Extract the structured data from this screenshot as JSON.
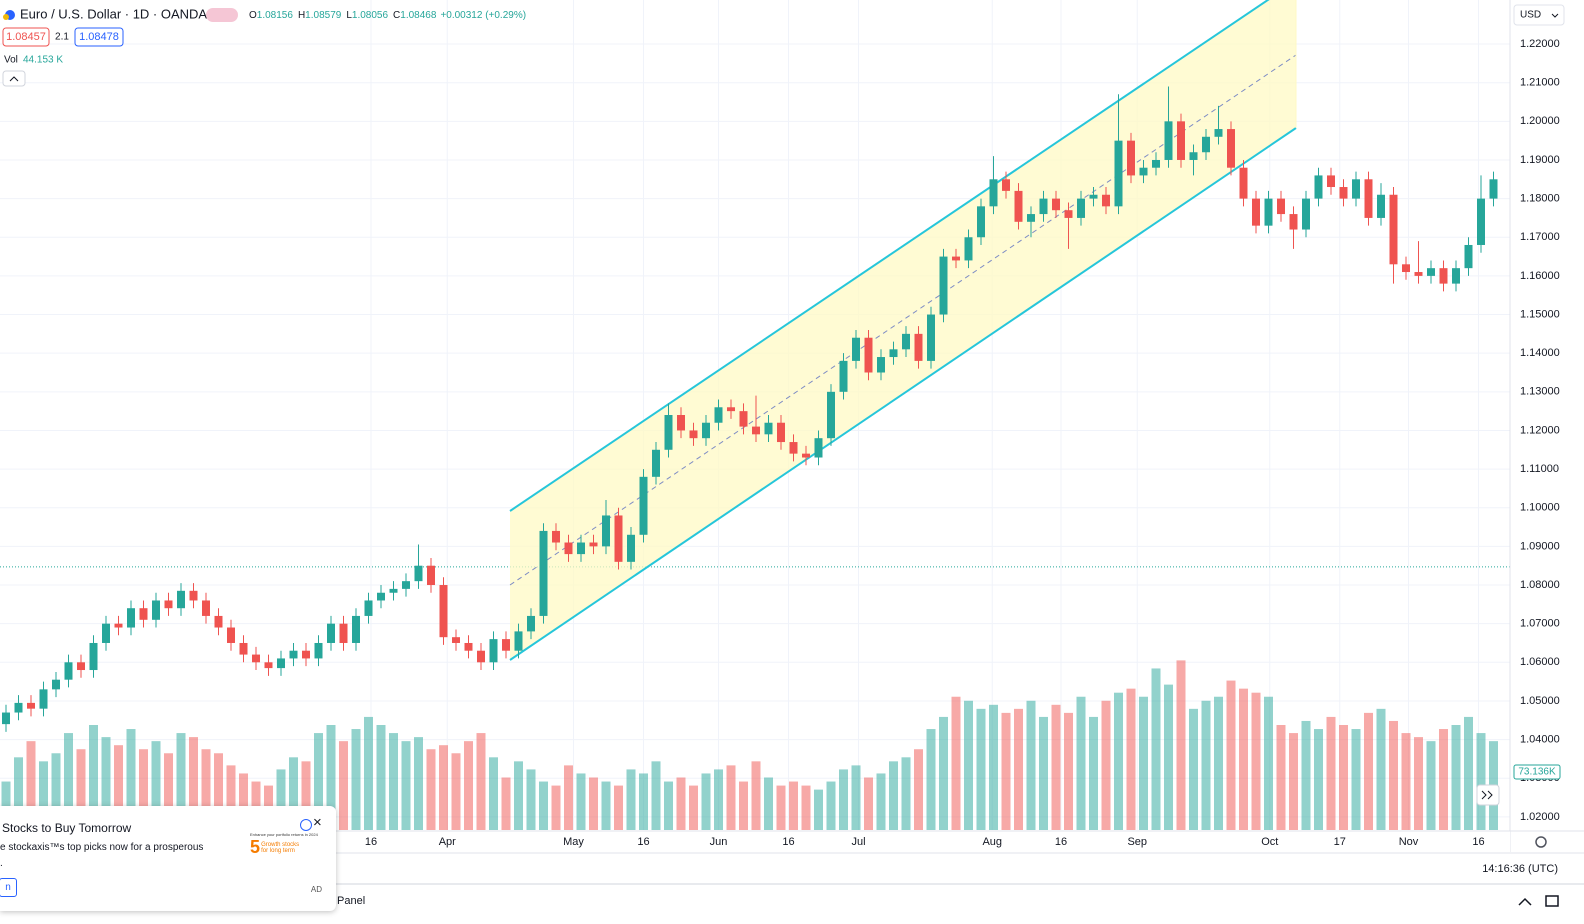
{
  "chart_data": {
    "type": "candlestick",
    "ylim": [
      1.0166,
      1.2314
    ],
    "yticks": [
      {
        "value": 1.22,
        "label": "1.22000"
      },
      {
        "value": 1.21,
        "label": "1.21000"
      },
      {
        "value": 1.2,
        "label": "1.20000"
      },
      {
        "value": 1.19,
        "label": "1.19000"
      },
      {
        "value": 1.18,
        "label": "1.18000"
      },
      {
        "value": 1.17,
        "label": "1.17000"
      },
      {
        "value": 1.16,
        "label": "1.16000"
      },
      {
        "value": 1.15,
        "label": "1.15000"
      },
      {
        "value": 1.14,
        "label": "1.14000"
      },
      {
        "value": 1.13,
        "label": "1.13000"
      },
      {
        "value": 1.12,
        "label": "1.12000"
      },
      {
        "value": 1.11,
        "label": "1.11000"
      },
      {
        "value": 1.1,
        "label": "1.10000"
      },
      {
        "value": 1.09,
        "label": "1.09000"
      },
      {
        "value": 1.08,
        "label": "1.08000"
      },
      {
        "value": 1.07,
        "label": "1.07000"
      },
      {
        "value": 1.06,
        "label": "1.06000"
      },
      {
        "value": 1.05,
        "label": "1.05000"
      },
      {
        "value": 1.04,
        "label": "1.04000"
      },
      {
        "value": 1.03,
        "label": "1.03000"
      },
      {
        "value": 1.02,
        "label": "1.02000"
      }
    ],
    "xticks": [
      {
        "value": 29.2,
        "label": "16"
      },
      {
        "value": 35.3,
        "label": "Apr"
      },
      {
        "value": 45.4,
        "label": "May"
      },
      {
        "value": 51,
        "label": "16"
      },
      {
        "value": 57,
        "label": "Jun"
      },
      {
        "value": 62.6,
        "label": "16"
      },
      {
        "value": 68.2,
        "label": "Jul"
      },
      {
        "value": 78.9,
        "label": "Aug"
      },
      {
        "value": 84.4,
        "label": "16"
      },
      {
        "value": 90.5,
        "label": "Sep"
      },
      {
        "value": 101.1,
        "label": "Oct"
      },
      {
        "value": 106.7,
        "label": "17"
      },
      {
        "value": 112.2,
        "label": "Nov"
      },
      {
        "value": 117.8,
        "label": "16"
      }
    ],
    "up_color": "#26a69a",
    "down_color": "#ef5350",
    "grid": true,
    "volume_lim": [
      0,
      260
    ],
    "open": [
      1.044,
      1.047,
      1.0495,
      1.048,
      1.053,
      1.0555,
      1.06,
      1.058,
      1.065,
      1.07,
      1.069,
      1.074,
      1.071,
      1.076,
      1.074,
      1.0785,
      1.076,
      1.072,
      1.069,
      1.065,
      1.062,
      1.06,
      1.0585,
      1.061,
      1.063,
      1.061,
      1.065,
      1.07,
      1.065,
      1.072,
      1.076,
      1.078,
      1.079,
      1.081,
      1.085,
      1.08,
      1.0665,
      1.065,
      1.063,
      1.06,
      1.066,
      1.063,
      1.068,
      1.072,
      1.094,
      1.091,
      1.088,
      1.091,
      1.09,
      1.098,
      1.086,
      1.093,
      1.108,
      1.115,
      1.124,
      1.12,
      1.118,
      1.122,
      1.126,
      1.125,
      1.121,
      1.119,
      1.122,
      1.117,
      1.114,
      1.113,
      1.118,
      1.13,
      1.138,
      1.144,
      1.135,
      1.139,
      1.141,
      1.145,
      1.138,
      1.15,
      1.165,
      1.164,
      1.17,
      1.178,
      1.185,
      1.182,
      1.174,
      1.176,
      1.18,
      1.177,
      1.175,
      1.18,
      1.181,
      1.178,
      1.195,
      1.186,
      1.188,
      1.19,
      1.2,
      1.19,
      1.192,
      1.196,
      1.198,
      1.188,
      1.18,
      1.173,
      1.18,
      1.176,
      1.172,
      1.18,
      1.186,
      1.183,
      1.18,
      1.185,
      1.175,
      1.181,
      1.163,
      1.161,
      1.16,
      1.162,
      1.158,
      1.162,
      1.168,
      1.18
    ],
    "high": [
      1.049,
      1.0515,
      1.0515,
      1.055,
      1.0575,
      1.062,
      1.062,
      1.067,
      1.072,
      1.072,
      1.076,
      1.076,
      1.078,
      1.078,
      1.0805,
      1.0805,
      1.078,
      1.074,
      1.071,
      1.067,
      1.064,
      1.062,
      1.063,
      1.065,
      1.065,
      1.067,
      1.072,
      1.072,
      1.074,
      1.078,
      1.08,
      1.081,
      1.083,
      1.0905,
      1.087,
      1.082,
      1.0685,
      1.067,
      1.065,
      1.068,
      1.068,
      1.07,
      1.074,
      1.096,
      1.096,
      1.093,
      1.093,
      1.093,
      1.102,
      1.1,
      1.095,
      1.11,
      1.117,
      1.127,
      1.126,
      1.122,
      1.124,
      1.128,
      1.128,
      1.127,
      1.129,
      1.124,
      1.124,
      1.119,
      1.116,
      1.12,
      1.132,
      1.14,
      1.146,
      1.146,
      1.141,
      1.143,
      1.147,
      1.147,
      1.152,
      1.167,
      1.167,
      1.172,
      1.18,
      1.191,
      1.187,
      1.184,
      1.178,
      1.182,
      1.182,
      1.179,
      1.182,
      1.183,
      1.183,
      1.207,
      1.197,
      1.19,
      1.192,
      1.209,
      1.202,
      1.194,
      1.198,
      1.204,
      1.2,
      1.19,
      1.182,
      1.182,
      1.182,
      1.178,
      1.182,
      1.188,
      1.188,
      1.185,
      1.187,
      1.187,
      1.184,
      1.183,
      1.165,
      1.169,
      1.164,
      1.164,
      1.164,
      1.17,
      1.186,
      1.187
    ],
    "low": [
      1.042,
      1.045,
      1.046,
      1.046,
      1.051,
      1.0535,
      1.056,
      1.056,
      1.063,
      1.067,
      1.067,
      1.069,
      1.069,
      1.072,
      1.072,
      1.074,
      1.07,
      1.067,
      1.063,
      1.06,
      1.058,
      1.0565,
      1.0565,
      1.059,
      1.059,
      1.059,
      1.063,
      1.063,
      1.063,
      1.07,
      1.074,
      1.076,
      1.077,
      1.079,
      1.078,
      1.0645,
      1.063,
      1.061,
      1.058,
      1.058,
      1.061,
      1.061,
      1.066,
      1.07,
      1.089,
      1.086,
      1.086,
      1.088,
      1.088,
      1.084,
      1.084,
      1.091,
      1.106,
      1.113,
      1.118,
      1.116,
      1.116,
      1.12,
      1.123,
      1.119,
      1.117,
      1.117,
      1.115,
      1.112,
      1.111,
      1.111,
      1.116,
      1.128,
      1.136,
      1.133,
      1.133,
      1.137,
      1.139,
      1.136,
      1.136,
      1.148,
      1.162,
      1.162,
      1.168,
      1.176,
      1.18,
      1.172,
      1.17,
      1.174,
      1.175,
      1.167,
      1.173,
      1.178,
      1.176,
      1.176,
      1.184,
      1.184,
      1.186,
      1.188,
      1.188,
      1.186,
      1.19,
      1.194,
      1.186,
      1.178,
      1.171,
      1.171,
      1.174,
      1.167,
      1.17,
      1.178,
      1.181,
      1.178,
      1.178,
      1.173,
      1.173,
      1.158,
      1.159,
      1.158,
      1.158,
      1.156,
      1.156,
      1.16,
      1.166,
      1.178
    ],
    "close": [
      1.047,
      1.0495,
      1.048,
      1.053,
      1.0555,
      1.06,
      1.058,
      1.065,
      1.07,
      1.069,
      1.074,
      1.071,
      1.076,
      1.074,
      1.0785,
      1.076,
      1.072,
      1.069,
      1.065,
      1.062,
      1.06,
      1.0585,
      1.061,
      1.063,
      1.061,
      1.065,
      1.07,
      1.065,
      1.072,
      1.076,
      1.078,
      1.079,
      1.081,
      1.085,
      1.08,
      1.0665,
      1.065,
      1.063,
      1.06,
      1.066,
      1.063,
      1.068,
      1.072,
      1.094,
      1.091,
      1.088,
      1.091,
      1.09,
      1.098,
      1.086,
      1.093,
      1.108,
      1.115,
      1.124,
      1.12,
      1.118,
      1.122,
      1.126,
      1.125,
      1.121,
      1.119,
      1.122,
      1.117,
      1.114,
      1.113,
      1.118,
      1.13,
      1.138,
      1.144,
      1.135,
      1.139,
      1.141,
      1.145,
      1.138,
      1.15,
      1.165,
      1.164,
      1.17,
      1.178,
      1.185,
      1.182,
      1.174,
      1.176,
      1.18,
      1.177,
      1.175,
      1.18,
      1.181,
      1.178,
      1.195,
      1.186,
      1.188,
      1.19,
      1.2,
      1.19,
      1.192,
      1.196,
      1.198,
      1.188,
      1.18,
      1.173,
      1.18,
      1.176,
      1.172,
      1.18,
      1.186,
      1.183,
      1.18,
      1.185,
      1.175,
      1.181,
      1.163,
      1.161,
      1.16,
      1.162,
      1.158,
      1.162,
      1.168,
      1.18,
      1.185
    ],
    "volume": [
      60,
      90,
      110,
      85,
      95,
      120,
      100,
      130,
      115,
      105,
      125,
      100,
      110,
      95,
      120,
      115,
      100,
      95,
      80,
      70,
      60,
      55,
      75,
      90,
      85,
      120,
      130,
      110,
      125,
      140,
      130,
      120,
      110,
      115,
      100,
      105,
      95,
      110,
      120,
      90,
      65,
      85,
      75,
      60,
      55,
      80,
      70,
      65,
      60,
      55,
      75,
      70,
      85,
      60,
      65,
      55,
      70,
      75,
      80,
      60,
      85,
      65,
      55,
      60,
      55,
      50,
      60,
      75,
      80,
      65,
      70,
      85,
      90,
      100,
      125,
      140,
      165,
      160,
      150,
      155,
      145,
      150,
      160,
      140,
      155,
      145,
      165,
      140,
      160,
      170,
      175,
      165,
      200,
      180,
      210,
      150,
      160,
      165,
      185,
      175,
      170,
      165,
      130,
      120,
      135,
      125,
      140,
      130,
      125,
      145,
      150,
      135,
      120,
      115,
      110,
      125,
      130,
      140,
      120,
      110
    ]
  },
  "ui": {
    "symbol": "Euro / U.S. Dollar · 1D · OANDA",
    "ohlc": [
      {
        "key": "O",
        "value": 1.08156
      },
      {
        "key": "H",
        "value": 1.08579
      },
      {
        "key": "L",
        "value": 1.08056
      },
      {
        "key": "C",
        "value": 1.08468
      }
    ],
    "change": "+0.00312 (+0.29%)",
    "bid": "1.08457",
    "spread": "2.1",
    "ask": "1.08478",
    "vol_label": "Vol",
    "vol_value": "44.153 K",
    "currency": "USD",
    "volume_last": "73.136K",
    "time": "14:16:36 (UTC)",
    "panel": "Panel",
    "ad": {
      "title": "Stocks to Buy Tomorrow",
      "text": "e stockaxis™s top picks now for a prosperous",
      "text2": ".",
      "button": "n",
      "img_head": "Enhance your portfolio returns in 2024",
      "img_num": "5",
      "img_l1": "Growth stocks",
      "img_l2": "for long term",
      "badge": "AD"
    }
  }
}
